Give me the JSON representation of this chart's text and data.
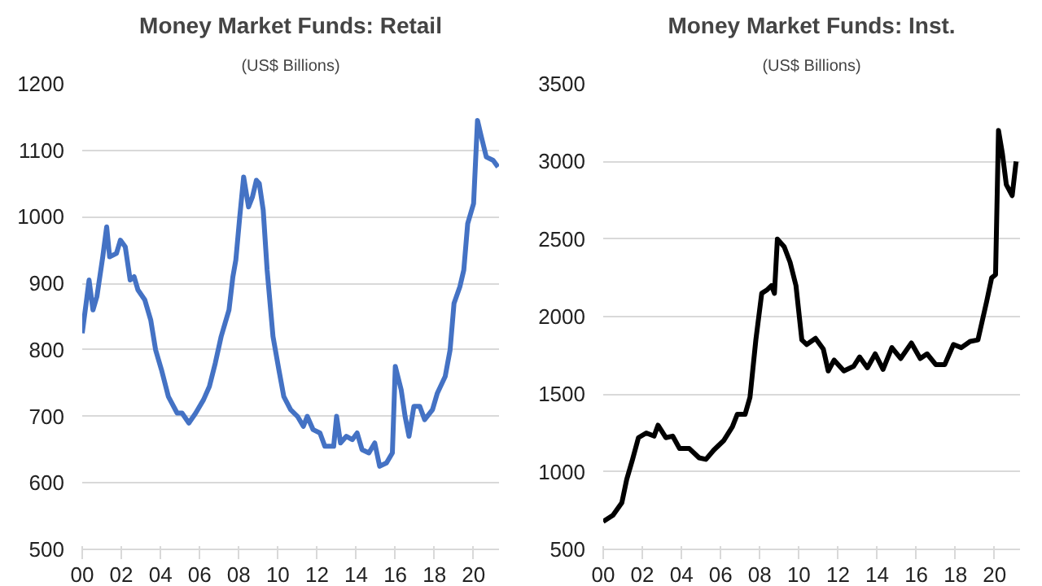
{
  "chart_data": [
    {
      "type": "line",
      "title": "Money Market Funds: Retail",
      "subtitle": "(US$ Billions)",
      "x": [
        2000.0,
        2000.2,
        2000.35,
        2000.55,
        2000.75,
        2001.05,
        2001.25,
        2001.4,
        2001.75,
        2001.95,
        2002.2,
        2002.45,
        2002.65,
        2002.85,
        2003.2,
        2003.5,
        2003.75,
        2004.05,
        2004.4,
        2004.85,
        2005.1,
        2005.45,
        2005.8,
        2006.2,
        2006.5,
        2006.8,
        2007.1,
        2007.3,
        2007.5,
        2007.7,
        2007.85,
        2008.05,
        2008.25,
        2008.5,
        2008.7,
        2008.9,
        2009.05,
        2009.25,
        2009.45,
        2009.75,
        2010.05,
        2010.3,
        2010.65,
        2011.0,
        2011.3,
        2011.5,
        2011.8,
        2012.15,
        2012.4,
        2012.85,
        2013.0,
        2013.2,
        2013.5,
        2013.8,
        2014.05,
        2014.3,
        2014.65,
        2014.95,
        2015.2,
        2015.55,
        2015.85,
        2016.0,
        2016.3,
        2016.5,
        2016.7,
        2016.95,
        2017.25,
        2017.5,
        2017.9,
        2018.15,
        2018.55,
        2018.8,
        2019.0,
        2019.3,
        2019.5,
        2019.7,
        2020.0,
        2020.2,
        2020.4,
        2020.65,
        2021.0,
        2021.25
      ],
      "series": [
        {
          "color": "#4472c4",
          "values": [
            825,
            870,
            905,
            860,
            880,
            940,
            985,
            940,
            945,
            965,
            955,
            905,
            910,
            890,
            875,
            845,
            800,
            770,
            730,
            705,
            705,
            690,
            705,
            725,
            745,
            780,
            820,
            840,
            860,
            910,
            935,
            1000,
            1060,
            1015,
            1030,
            1055,
            1050,
            1010,
            920,
            820,
            770,
            730,
            710,
            700,
            685,
            700,
            680,
            675,
            655,
            655,
            700,
            660,
            670,
            665,
            675,
            650,
            645,
            660,
            625,
            630,
            645,
            775,
            740,
            700,
            670,
            715,
            715,
            695,
            710,
            735,
            760,
            800,
            870,
            895,
            920,
            990,
            1020,
            1145,
            1120,
            1090,
            1085,
            1075
          ]
        }
      ],
      "xlim": [
        2000,
        2021.3
      ],
      "xticks": [
        {
          "value": 2000,
          "label": "00"
        },
        {
          "value": 2002,
          "label": "02"
        },
        {
          "value": 2004,
          "label": "04"
        },
        {
          "value": 2006,
          "label": "06"
        },
        {
          "value": 2008,
          "label": "08"
        },
        {
          "value": 2010,
          "label": "10"
        },
        {
          "value": 2012,
          "label": "12"
        },
        {
          "value": 2014,
          "label": "14"
        },
        {
          "value": 2016,
          "label": "16"
        },
        {
          "value": 2018,
          "label": "18"
        },
        {
          "value": 2020,
          "label": "20"
        }
      ],
      "ylim": [
        500,
        1200
      ],
      "yticks": [
        500,
        600,
        700,
        800,
        900,
        1000,
        1100,
        1200
      ],
      "grid": "y"
    },
    {
      "type": "line",
      "title": "Money Market Funds: Inst.",
      "subtitle": "(US$ Billions)",
      "x": [
        2000.0,
        2000.5,
        2000.95,
        2001.2,
        2001.5,
        2001.8,
        2002.2,
        2002.6,
        2002.8,
        2003.2,
        2003.55,
        2003.9,
        2004.4,
        2004.9,
        2005.25,
        2005.65,
        2006.15,
        2006.6,
        2006.85,
        2007.25,
        2007.5,
        2007.8,
        2008.1,
        2008.35,
        2008.6,
        2008.75,
        2008.9,
        2009.25,
        2009.55,
        2009.85,
        2010.15,
        2010.4,
        2010.85,
        2011.25,
        2011.5,
        2011.8,
        2012.3,
        2012.8,
        2013.1,
        2013.5,
        2013.9,
        2014.3,
        2014.75,
        2015.2,
        2015.75,
        2016.2,
        2016.55,
        2017.0,
        2017.45,
        2017.9,
        2018.3,
        2018.75,
        2019.15,
        2019.6,
        2019.85,
        2020.05,
        2020.2,
        2020.4,
        2020.6,
        2020.9,
        2021.1
      ],
      "series": [
        {
          "color": "#000000",
          "values": [
            680,
            720,
            800,
            950,
            1080,
            1220,
            1250,
            1230,
            1300,
            1220,
            1230,
            1150,
            1150,
            1090,
            1080,
            1140,
            1200,
            1290,
            1370,
            1370,
            1480,
            1850,
            2150,
            2170,
            2200,
            2150,
            2500,
            2450,
            2350,
            2200,
            1850,
            1820,
            1860,
            1790,
            1650,
            1720,
            1650,
            1680,
            1740,
            1670,
            1760,
            1660,
            1800,
            1730,
            1830,
            1730,
            1760,
            1690,
            1690,
            1820,
            1800,
            1840,
            1850,
            2100,
            2250,
            2270,
            3200,
            3050,
            2850,
            2780,
            3000
          ]
        }
      ],
      "xlim": [
        2000,
        2021.3
      ],
      "xticks": [
        {
          "value": 2000,
          "label": "00"
        },
        {
          "value": 2002,
          "label": "02"
        },
        {
          "value": 2004,
          "label": "04"
        },
        {
          "value": 2006,
          "label": "06"
        },
        {
          "value": 2008,
          "label": "08"
        },
        {
          "value": 2010,
          "label": "10"
        },
        {
          "value": 2012,
          "label": "12"
        },
        {
          "value": 2014,
          "label": "14"
        },
        {
          "value": 2016,
          "label": "16"
        },
        {
          "value": 2018,
          "label": "18"
        },
        {
          "value": 2020,
          "label": "20"
        }
      ],
      "ylim": [
        500,
        3500
      ],
      "yticks": [
        500,
        1000,
        1500,
        2000,
        2500,
        3000,
        3500
      ],
      "grid": "y"
    }
  ]
}
